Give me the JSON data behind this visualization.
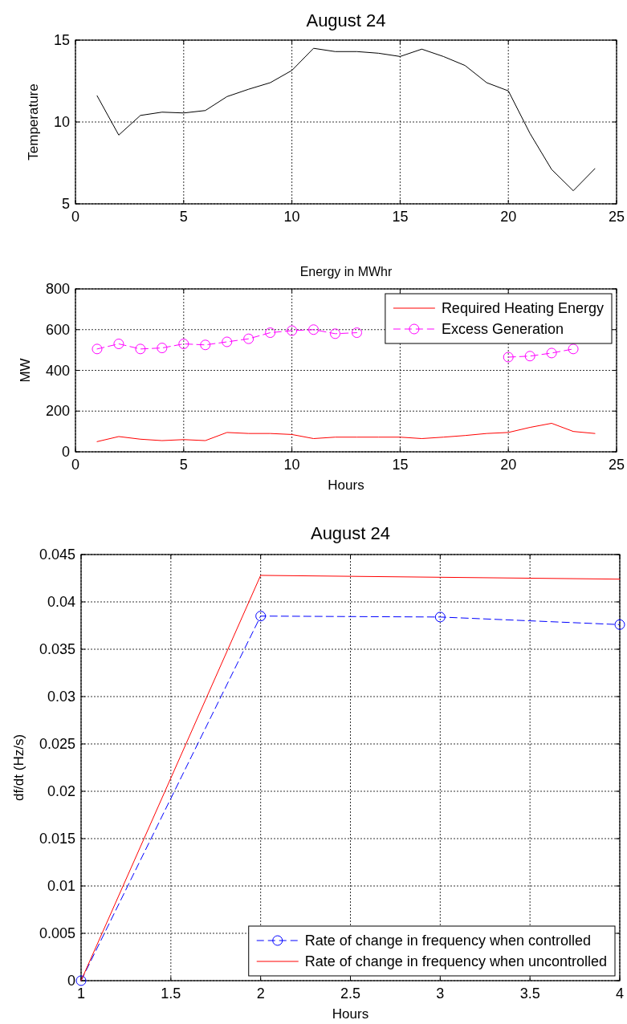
{
  "chart_data": [
    {
      "type": "line",
      "title": "August 24",
      "ylabel": "Temperature",
      "x": [
        1,
        2,
        3,
        4,
        5,
        6,
        7,
        8,
        9,
        10,
        11,
        12,
        13,
        14,
        15,
        16,
        17,
        18,
        19,
        20,
        21,
        22,
        23,
        24
      ],
      "series": [
        {
          "color": "#000000",
          "values": [
            11.6,
            9.2,
            10.4,
            10.6,
            10.55,
            10.7,
            11.55,
            12.0,
            12.4,
            13.15,
            14.5,
            14.3,
            14.3,
            14.2,
            14.0,
            14.45,
            14.0,
            13.45,
            12.4,
            11.9,
            9.3,
            7.1,
            5.8,
            7.15
          ]
        }
      ],
      "xlim": [
        0,
        25
      ],
      "xticks": [
        0,
        5,
        10,
        15,
        20,
        25
      ],
      "ylim": [
        5,
        15
      ],
      "yticks": [
        5,
        10,
        15
      ],
      "grid": true
    },
    {
      "type": "line",
      "title": "Energy in MWhr",
      "xlabel": "Hours",
      "ylabel": "MW",
      "x": [
        1,
        2,
        3,
        4,
        5,
        6,
        7,
        8,
        9,
        10,
        11,
        12,
        13,
        14,
        15,
        16,
        17,
        18,
        19,
        20,
        21,
        22,
        23,
        24
      ],
      "series": [
        {
          "name": "Required Heating Energy",
          "color": "#ff0000",
          "values": [
            50,
            75,
            62,
            55,
            60,
            55,
            95,
            90,
            90,
            85,
            65,
            72,
            72,
            72,
            72,
            65,
            72,
            80,
            90,
            95,
            120,
            140,
            100,
            90
          ]
        },
        {
          "name": "Excess Generation",
          "color": "#ff00ff",
          "marker": "circle",
          "line_style": "dashed",
          "values": [
            505,
            530,
            505,
            510,
            530,
            525,
            540,
            555,
            585,
            595,
            600,
            580,
            585,
            null,
            null,
            null,
            null,
            null,
            null,
            465,
            470,
            485,
            505,
            null
          ]
        }
      ],
      "xlim": [
        0,
        25
      ],
      "xticks": [
        0,
        5,
        10,
        15,
        20,
        25
      ],
      "ylim": [
        0,
        800
      ],
      "yticks": [
        0,
        200,
        400,
        600,
        800
      ],
      "grid": true,
      "legend": "top right"
    },
    {
      "type": "line",
      "title": "August 24",
      "xlabel": "Hours",
      "ylabel": "df/dt (Hz/s)",
      "x": [
        1,
        2,
        3,
        4
      ],
      "series": [
        {
          "name": "Rate of change in frequency when controlled",
          "color": "#0000ff",
          "marker": "circle",
          "line_style": "dashed",
          "values": [
            0,
            0.0385,
            0.0384,
            0.0376
          ]
        },
        {
          "name": "Rate of change in frequency when uncontrolled",
          "color": "#ff0000",
          "values": [
            0,
            0.0428,
            0.0426,
            0.0424
          ]
        }
      ],
      "xlim": [
        1,
        4
      ],
      "xticks": [
        1,
        1.5,
        2,
        2.5,
        3,
        3.5,
        4
      ],
      "ylim": [
        0,
        0.045
      ],
      "yticks": [
        0,
        0.005,
        0.01,
        0.015,
        0.02,
        0.025,
        0.03,
        0.035,
        0.04,
        0.045
      ],
      "grid": true,
      "legend": "bottom right"
    }
  ]
}
